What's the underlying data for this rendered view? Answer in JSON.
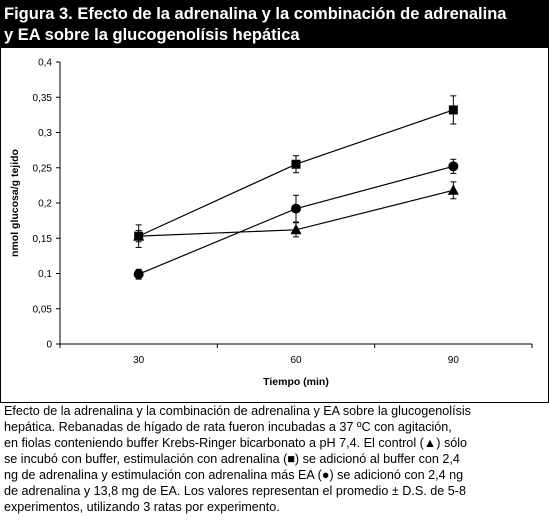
{
  "figure": {
    "title_line1": "Figura 3. Efecto de la adrenalina y la combinación de adrenalina",
    "title_line2": "y EA sobre la glucogenolísis hepática"
  },
  "caption": {
    "lines": [
      "Efecto de la adrenalina y la combinación de adrenalina y EA sobre la glucogenolísis",
      "hepática. Rebanadas de hígado de rata fueron incubadas a 37 ºC con agitación,",
      "en fiolas conteniendo buffer Krebs-Ringer bicarbonato a pH 7,4. El control (▲) sólo",
      "se incubó con buffer, estimulación con adrenalina (■) se adicionó al buffer con 2,4",
      "ng de adrenalina y estimulación con adrenalina más EA (●) se adicionó con 2,4 ng",
      "de adrenalina y 13,8 mg de EA. Los valores representan el promedio ± D.S. de 5-8",
      "experimentos, utilizando 3 ratas por experimento."
    ]
  },
  "chart_data": {
    "type": "line",
    "x": [
      30,
      60,
      90
    ],
    "xlabel": "Tiempo (min)",
    "ylabel": "nmol glucosa/g tejido",
    "ylim": [
      0,
      0.4
    ],
    "yticks": [
      0,
      0.05,
      0.1,
      0.15,
      0.2,
      0.25,
      0.3,
      0.35,
      0.4
    ],
    "ytick_labels": [
      "0",
      "0,05",
      "0,1",
      "0,15",
      "0,2",
      "0,25",
      "0,3",
      "0,35",
      "0,4"
    ],
    "xtick_labels": [
      "30",
      "60",
      "90"
    ],
    "grid": false,
    "legend": "none",
    "series": [
      {
        "marker": "square",
        "color": "#000000",
        "values": [
          0.153,
          0.255,
          0.332
        ],
        "errors": [
          0.016,
          0.012,
          0.02
        ]
      },
      {
        "marker": "circle",
        "color": "#000000",
        "values": [
          0.099,
          0.192,
          0.252
        ],
        "errors": [
          0.007,
          0.019,
          0.01
        ]
      },
      {
        "marker": "triangle",
        "color": "#000000",
        "values": [
          0.153,
          0.162,
          0.218
        ],
        "errors": [
          0.008,
          0.01,
          0.012
        ]
      }
    ]
  }
}
